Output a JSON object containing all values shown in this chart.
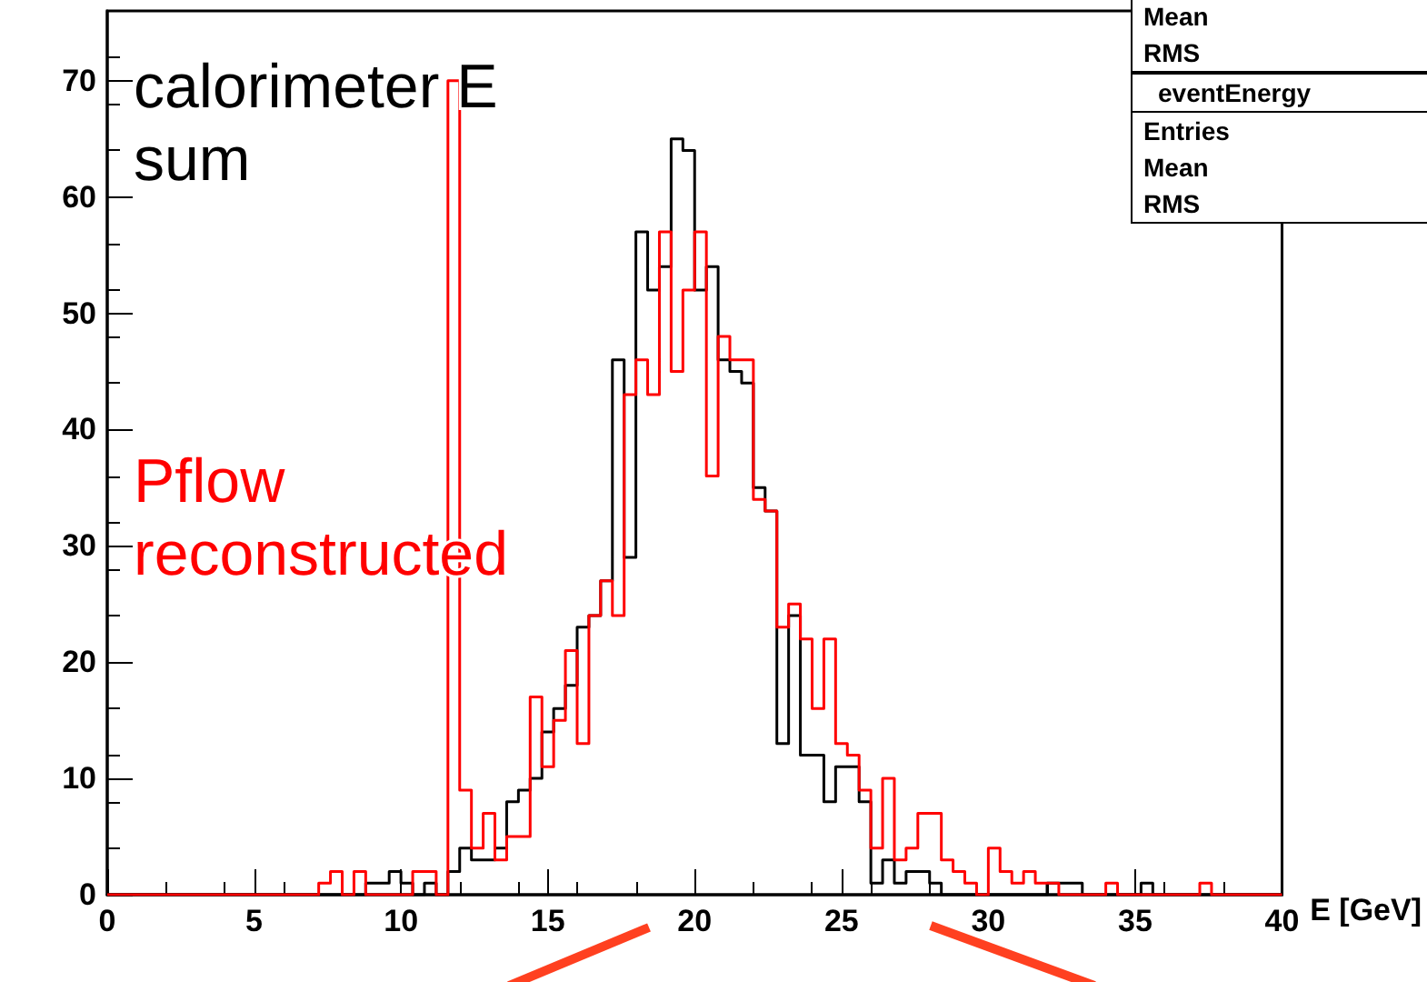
{
  "chart_data": {
    "type": "histogram",
    "xlabel": "E [GeV]",
    "bins": [
      0,
      0.4,
      0.8,
      1.2,
      1.6,
      2,
      2.4,
      2.8,
      3.2,
      3.6,
      4,
      4.4,
      4.8,
      5.2,
      5.6,
      6,
      6.4,
      6.8,
      7.2,
      7.6,
      8,
      8.4,
      8.8,
      9.2,
      9.6,
      10,
      10.4,
      10.8,
      11.2,
      11.6,
      12,
      12.4,
      12.8,
      13.2,
      13.6,
      14,
      14.4,
      14.8,
      15.2,
      15.6,
      16,
      16.4,
      16.8,
      17.2,
      17.6,
      18,
      18.4,
      18.8,
      19.2,
      19.6,
      20,
      20.4,
      20.8,
      21.2,
      21.6,
      22,
      22.4,
      22.8,
      23.2,
      23.6,
      24,
      24.4,
      24.8,
      25.2,
      25.6,
      26,
      26.4,
      26.8,
      27.2,
      27.6,
      28,
      28.4,
      28.8,
      29.2,
      29.6,
      30,
      30.4,
      30.8,
      31.2,
      31.6,
      32,
      32.4,
      32.8,
      33.2,
      33.6,
      34,
      34.4,
      34.8,
      35.2,
      35.6,
      36,
      36.4,
      36.8,
      37.2,
      37.6,
      38,
      38.4,
      38.8,
      39.2,
      39.6,
      40
    ],
    "series": [
      {
        "name": "calorimeter E sum",
        "color": "#000000",
        "values": [
          0,
          0,
          0,
          0,
          0,
          0,
          0,
          0,
          0,
          0,
          0,
          0,
          0,
          0,
          0,
          0,
          0,
          0,
          0,
          0,
          0,
          0,
          1,
          1,
          2,
          1,
          0,
          1,
          0,
          2,
          4,
          3,
          3,
          4,
          8,
          9,
          10,
          14,
          16,
          18,
          23,
          24,
          27,
          46,
          29,
          57,
          52,
          54,
          65,
          64,
          52,
          54,
          46,
          45,
          44,
          35,
          33,
          13,
          24,
          12,
          12,
          8,
          11,
          11,
          8,
          1,
          3,
          1,
          2,
          2,
          1,
          0,
          0,
          0,
          0,
          0,
          0,
          0,
          0,
          0,
          1,
          1,
          1,
          0,
          0,
          0,
          0,
          0,
          1,
          0,
          0,
          0,
          0,
          0,
          0,
          0,
          0,
          0,
          0,
          0
        ]
      },
      {
        "name": "Pflow reconstructed",
        "color": "#ff0000",
        "values": [
          0,
          0,
          0,
          0,
          0,
          0,
          0,
          0,
          0,
          0,
          0,
          0,
          0,
          0,
          0,
          0,
          0,
          0,
          1,
          2,
          0,
          2,
          0,
          0,
          0,
          0,
          2,
          2,
          0,
          70,
          9,
          4,
          7,
          3,
          5,
          5,
          17,
          11,
          15,
          21,
          13,
          24,
          27,
          24,
          43,
          46,
          43,
          57,
          45,
          52,
          57,
          36,
          48,
          46,
          46,
          34,
          33,
          23,
          25,
          22,
          16,
          22,
          13,
          12,
          9,
          4,
          10,
          3,
          4,
          7,
          7,
          3,
          2,
          1,
          0,
          4,
          2,
          1,
          2,
          1,
          1,
          0,
          0,
          0,
          0,
          1,
          0,
          0,
          0,
          0,
          0,
          0,
          0,
          1,
          0,
          0,
          0,
          0,
          0,
          0
        ]
      }
    ],
    "annotations": [
      "Mean",
      "RMS",
      "eventEnergy",
      "Entries",
      "Mean",
      "RMS"
    ],
    "xlim": [
      0,
      40
    ],
    "xticks": [
      0,
      5,
      10,
      15,
      20,
      25,
      30,
      35,
      40
    ],
    "ylim": [
      0,
      76
    ],
    "yticks": [
      0,
      10,
      20,
      30,
      40,
      50,
      60,
      70
    ],
    "grid": false,
    "legend": false
  }
}
